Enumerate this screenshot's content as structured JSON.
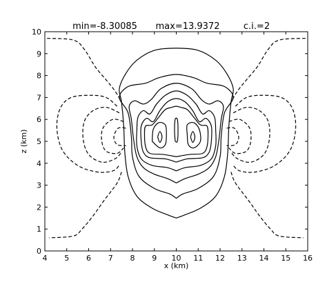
{
  "chart_data": {
    "type": "contour",
    "title": "",
    "title_parts": [
      "min=-8.30085",
      "max=13.9372",
      "c.i.=2"
    ],
    "xlabel": "x (km)",
    "ylabel": "z (km)",
    "xlim": [
      4,
      16
    ],
    "ylim": [
      0,
      10
    ],
    "xticks": [
      "4",
      "5",
      "6",
      "7",
      "8",
      "9",
      "10",
      "11",
      "12",
      "13",
      "14",
      "15",
      "16"
    ],
    "yticks": [
      "0",
      "1",
      "2",
      "3",
      "4",
      "5",
      "6",
      "7",
      "8",
      "9",
      "10"
    ],
    "contour_interval": 2,
    "min": -8.30085,
    "max": 13.9372,
    "grid": false,
    "positive_contours": [
      {
        "name": "c1",
        "points": [
          [
            10,
            1.5
          ],
          [
            10.4,
            1.65
          ],
          [
            11.1,
            1.95
          ],
          [
            11.8,
            2.5
          ],
          [
            12.2,
            3.4
          ],
          [
            12.35,
            4.5
          ],
          [
            12.4,
            5.7
          ],
          [
            12.5,
            6.8
          ],
          [
            12.6,
            7.4
          ],
          [
            12.3,
            8.1
          ],
          [
            11.8,
            8.7
          ],
          [
            11,
            9.15
          ],
          [
            10,
            9.25
          ],
          [
            9,
            9.15
          ],
          [
            8.2,
            8.7
          ],
          [
            7.7,
            8.1
          ],
          [
            7.4,
            7.4
          ],
          [
            7.5,
            6.8
          ],
          [
            7.6,
            5.7
          ],
          [
            7.65,
            4.5
          ],
          [
            7.8,
            3.4
          ],
          [
            8.2,
            2.5
          ],
          [
            8.9,
            1.95
          ],
          [
            9.6,
            1.65
          ],
          [
            10,
            1.5
          ]
        ]
      },
      {
        "name": "c2",
        "points": [
          [
            10,
            2.4
          ],
          [
            10.3,
            2.6
          ],
          [
            11,
            2.85
          ],
          [
            11.7,
            3.4
          ],
          [
            12,
            4.3
          ],
          [
            12.05,
            5.2
          ],
          [
            12.2,
            6.3
          ],
          [
            12.6,
            7
          ],
          [
            12.2,
            7.5
          ],
          [
            11.4,
            7.65
          ],
          [
            10.8,
            7.9
          ],
          [
            10,
            8.05
          ],
          [
            9.2,
            7.9
          ],
          [
            8.6,
            7.65
          ],
          [
            7.8,
            7.5
          ],
          [
            7.4,
            7
          ],
          [
            7.8,
            6.3
          ],
          [
            7.95,
            5.2
          ],
          [
            8,
            4.3
          ],
          [
            8.3,
            3.4
          ],
          [
            9,
            2.85
          ],
          [
            9.7,
            2.6
          ],
          [
            10,
            2.4
          ]
        ]
      },
      {
        "name": "c3",
        "points": [
          [
            10,
            3.1
          ],
          [
            10.4,
            3.3
          ],
          [
            11,
            3.5
          ],
          [
            11.5,
            3.8
          ],
          [
            11.8,
            4.3
          ],
          [
            11.95,
            5.1
          ],
          [
            12.05,
            6
          ],
          [
            12.15,
            6.6
          ],
          [
            11.9,
            6.85
          ],
          [
            11.5,
            6.7
          ],
          [
            11.15,
            6.9
          ],
          [
            10.7,
            7.4
          ],
          [
            10,
            7.65
          ],
          [
            9.3,
            7.4
          ],
          [
            8.85,
            6.9
          ],
          [
            8.5,
            6.7
          ],
          [
            8.1,
            6.85
          ],
          [
            7.85,
            6.6
          ],
          [
            7.95,
            6
          ],
          [
            8.05,
            5.1
          ],
          [
            8.2,
            4.3
          ],
          [
            8.5,
            3.8
          ],
          [
            9,
            3.5
          ],
          [
            9.6,
            3.3
          ],
          [
            10,
            3.1
          ]
        ]
      },
      {
        "name": "c4",
        "points": [
          [
            10,
            3.65
          ],
          [
            10.4,
            3.8
          ],
          [
            11.1,
            3.9
          ],
          [
            11.6,
            4.2
          ],
          [
            11.8,
            4.8
          ],
          [
            11.8,
            5.5
          ],
          [
            11.75,
            6.1
          ],
          [
            11.5,
            6.4
          ],
          [
            11.2,
            6.25
          ],
          [
            10.9,
            6.7
          ],
          [
            10.5,
            7.1
          ],
          [
            10,
            7.3
          ],
          [
            9.5,
            7.1
          ],
          [
            9.1,
            6.7
          ],
          [
            8.8,
            6.25
          ],
          [
            8.5,
            6.4
          ],
          [
            8.25,
            6.1
          ],
          [
            8.2,
            5.5
          ],
          [
            8.2,
            4.8
          ],
          [
            8.4,
            4.2
          ],
          [
            8.9,
            3.9
          ],
          [
            9.6,
            3.8
          ],
          [
            10,
            3.65
          ]
        ]
      },
      {
        "name": "c5",
        "points": [
          [
            10,
            4.05
          ],
          [
            10.5,
            4.2
          ],
          [
            11.2,
            4.25
          ],
          [
            11.5,
            4.5
          ],
          [
            11.6,
            5
          ],
          [
            11.6,
            5.7
          ],
          [
            11.35,
            6.05
          ],
          [
            11.05,
            5.9
          ],
          [
            10.75,
            6.4
          ],
          [
            10.4,
            6.8
          ],
          [
            10,
            6.95
          ],
          [
            9.6,
            6.8
          ],
          [
            9.25,
            6.4
          ],
          [
            8.95,
            5.9
          ],
          [
            8.65,
            6.05
          ],
          [
            8.4,
            5.7
          ],
          [
            8.4,
            5
          ],
          [
            8.5,
            4.5
          ],
          [
            8.8,
            4.25
          ],
          [
            9.5,
            4.2
          ],
          [
            10,
            4.05
          ]
        ]
      },
      {
        "name": "c6",
        "points": [
          [
            10,
            4.3
          ],
          [
            10.6,
            4.4
          ],
          [
            11.2,
            4.45
          ],
          [
            11.4,
            4.75
          ],
          [
            11.45,
            5.3
          ],
          [
            11.4,
            5.7
          ],
          [
            11.1,
            5.75
          ],
          [
            10.8,
            6.1
          ],
          [
            10.5,
            6.45
          ],
          [
            10.2,
            6.55
          ],
          [
            10,
            6.6
          ],
          [
            9.8,
            6.55
          ],
          [
            9.5,
            6.45
          ],
          [
            9.2,
            6.1
          ],
          [
            8.9,
            5.75
          ],
          [
            8.6,
            5.7
          ],
          [
            8.55,
            5.3
          ],
          [
            8.6,
            4.75
          ],
          [
            8.8,
            4.45
          ],
          [
            9.4,
            4.4
          ],
          [
            10,
            4.3
          ]
        ]
      },
      {
        "name": "c7",
        "points": [
          [
            8.9,
            5
          ],
          [
            9.25,
            4.7
          ],
          [
            9.5,
            4.85
          ],
          [
            9.55,
            5.3
          ],
          [
            9.5,
            5.75
          ],
          [
            9.2,
            5.85
          ],
          [
            8.95,
            5.55
          ],
          [
            8.9,
            5
          ]
        ]
      },
      {
        "name": "c8",
        "points": [
          [
            10.5,
            5.3
          ],
          [
            10.55,
            4.85
          ],
          [
            10.8,
            4.7
          ],
          [
            11.1,
            5
          ],
          [
            11.05,
            5.55
          ],
          [
            10.8,
            5.85
          ],
          [
            10.5,
            5.75
          ],
          [
            10.5,
            5.3
          ]
        ]
      },
      {
        "name": "c9",
        "points": [
          [
            9.95,
            5
          ],
          [
            10.05,
            5
          ],
          [
            10.08,
            5.5
          ],
          [
            10.05,
            6
          ],
          [
            9.95,
            6
          ],
          [
            9.92,
            5.5
          ],
          [
            9.95,
            5
          ]
        ]
      },
      {
        "name": "c10",
        "points": [
          [
            9.15,
            5.2
          ],
          [
            9.25,
            4.95
          ],
          [
            9.35,
            5.2
          ],
          [
            9.25,
            5.45
          ],
          [
            9.15,
            5.2
          ]
        ]
      },
      {
        "name": "c11",
        "points": [
          [
            10.65,
            5.2
          ],
          [
            10.75,
            4.95
          ],
          [
            10.85,
            5.2
          ],
          [
            10.75,
            5.45
          ],
          [
            10.65,
            5.2
          ]
        ]
      }
    ],
    "negative_contours": [
      {
        "name": "n1-left",
        "points": [
          [
            4.1,
            9.7
          ],
          [
            5.3,
            9.62
          ],
          [
            5.8,
            9.2
          ],
          [
            6.3,
            8.4
          ],
          [
            6.8,
            7.8
          ],
          [
            7.2,
            7.3
          ],
          [
            7.5,
            6.8
          ]
        ]
      },
      {
        "name": "n1-left-low",
        "points": [
          [
            7.5,
            3.6
          ],
          [
            7.3,
            3.1
          ],
          [
            6.7,
            2.3
          ],
          [
            6.2,
            1.6
          ],
          [
            5.7,
            1
          ],
          [
            5.3,
            0.68
          ],
          [
            4.2,
            0.6
          ]
        ]
      },
      {
        "name": "n2-left",
        "points": [
          [
            7.3,
            6.6
          ],
          [
            6.8,
            7
          ],
          [
            6.1,
            7.1
          ],
          [
            5.2,
            7
          ],
          [
            4.7,
            6.5
          ],
          [
            4.55,
            5.6
          ],
          [
            4.8,
            4.6
          ],
          [
            5.5,
            3.9
          ],
          [
            6.4,
            3.6
          ],
          [
            7.1,
            3.65
          ],
          [
            7.4,
            3.9
          ]
        ]
      },
      {
        "name": "n3-left",
        "points": [
          [
            7.4,
            6.3
          ],
          [
            6.8,
            6.55
          ],
          [
            6.2,
            6.4
          ],
          [
            5.8,
            5.9
          ],
          [
            5.75,
            5.1
          ],
          [
            6,
            4.4
          ],
          [
            6.6,
            4.05
          ],
          [
            7.2,
            4.2
          ],
          [
            7.5,
            4.5
          ]
        ]
      },
      {
        "name": "n4-left",
        "points": [
          [
            7.6,
            5.9
          ],
          [
            7.1,
            6
          ],
          [
            6.65,
            5.6
          ],
          [
            6.6,
            5
          ],
          [
            6.8,
            4.55
          ],
          [
            7.3,
            4.45
          ],
          [
            7.6,
            4.7
          ]
        ]
      },
      {
        "name": "n5-left",
        "points": [
          [
            7.7,
            5.6
          ],
          [
            7.35,
            5.6
          ],
          [
            7.15,
            5.2
          ],
          [
            7.3,
            4.85
          ],
          [
            7.7,
            4.8
          ]
        ]
      },
      {
        "name": "n1-right",
        "points": [
          [
            15.9,
            9.7
          ],
          [
            14.7,
            9.62
          ],
          [
            14.2,
            9.2
          ],
          [
            13.7,
            8.4
          ],
          [
            13.2,
            7.8
          ],
          [
            12.8,
            7.3
          ],
          [
            12.5,
            6.8
          ]
        ]
      },
      {
        "name": "n1-right-low",
        "points": [
          [
            12.5,
            3.6
          ],
          [
            12.7,
            3.1
          ],
          [
            13.3,
            2.3
          ],
          [
            13.8,
            1.6
          ],
          [
            14.3,
            1
          ],
          [
            14.7,
            0.68
          ],
          [
            15.8,
            0.6
          ]
        ]
      },
      {
        "name": "n2-right",
        "points": [
          [
            12.7,
            6.6
          ],
          [
            13.2,
            7
          ],
          [
            13.9,
            7.1
          ],
          [
            14.8,
            7
          ],
          [
            15.3,
            6.5
          ],
          [
            15.45,
            5.6
          ],
          [
            15.2,
            4.6
          ],
          [
            14.5,
            3.9
          ],
          [
            13.6,
            3.6
          ],
          [
            12.9,
            3.65
          ],
          [
            12.6,
            3.9
          ]
        ]
      },
      {
        "name": "n3-right",
        "points": [
          [
            12.6,
            6.3
          ],
          [
            13.2,
            6.55
          ],
          [
            13.8,
            6.4
          ],
          [
            14.2,
            5.9
          ],
          [
            14.25,
            5.1
          ],
          [
            14,
            4.4
          ],
          [
            13.4,
            4.05
          ],
          [
            12.8,
            4.2
          ],
          [
            12.5,
            4.5
          ]
        ]
      },
      {
        "name": "n4-right",
        "points": [
          [
            12.4,
            5.9
          ],
          [
            12.9,
            6
          ],
          [
            13.35,
            5.6
          ],
          [
            13.4,
            5
          ],
          [
            13.2,
            4.55
          ],
          [
            12.7,
            4.45
          ],
          [
            12.4,
            4.7
          ]
        ]
      },
      {
        "name": "n5-right",
        "points": [
          [
            12.3,
            5.6
          ],
          [
            12.65,
            5.6
          ],
          [
            12.85,
            5.2
          ],
          [
            12.7,
            4.85
          ],
          [
            12.3,
            4.8
          ]
        ]
      }
    ]
  }
}
